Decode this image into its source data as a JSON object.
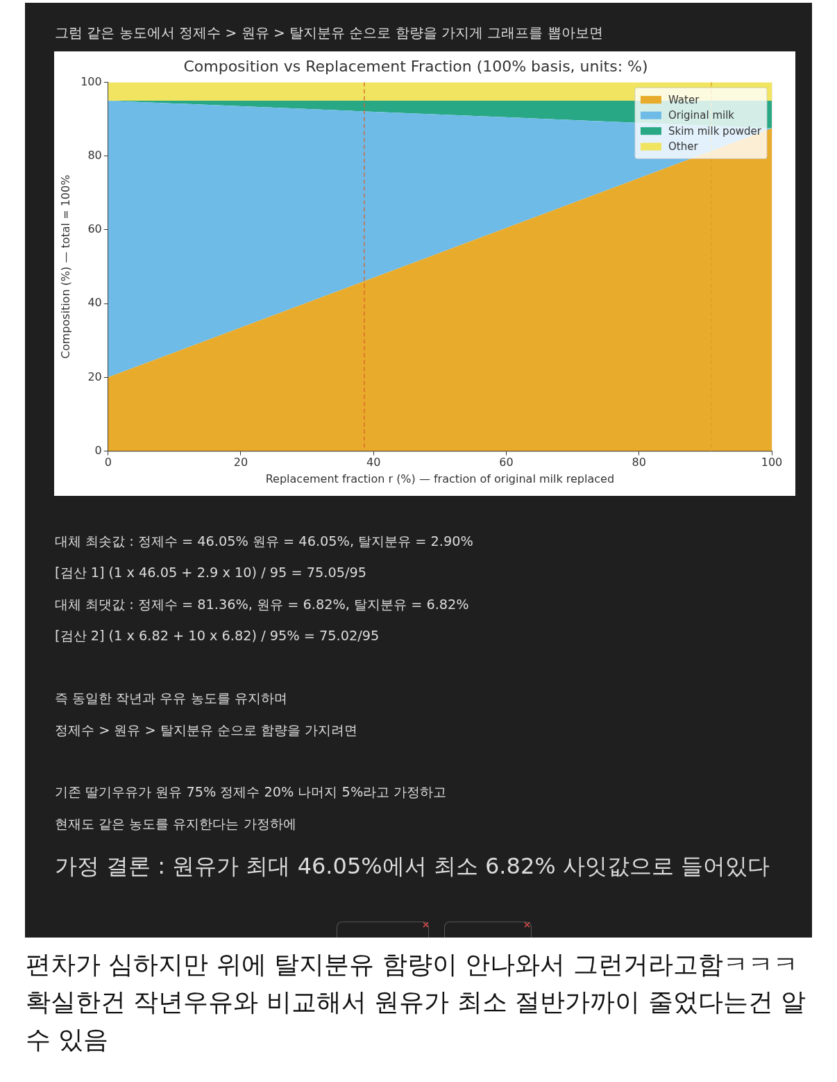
{
  "chart_data": {
    "type": "area",
    "title": "Composition vs Replacement Fraction (100% basis, units: %)",
    "xlabel": "Replacement fraction r (%) — fraction of original milk replaced",
    "ylabel": "Composition (%) — total = 100%",
    "x": [
      0,
      100
    ],
    "series": [
      {
        "name": "Water",
        "color": "#e8ab2b",
        "values": [
          20,
          87.5
        ]
      },
      {
        "name": "Original milk",
        "color": "#6ebbe8",
        "values": [
          75,
          0
        ]
      },
      {
        "name": "Skim milk powder",
        "color": "#29a886",
        "values": [
          0,
          7.5
        ]
      },
      {
        "name": "Other",
        "color": "#f0e460",
        "values": [
          5,
          5
        ]
      }
    ],
    "stacked": true,
    "xlim": [
      0,
      100
    ],
    "xticks": [
      0,
      20,
      40,
      60,
      80,
      100
    ],
    "ylim": [
      0,
      100
    ],
    "yticks": [
      0,
      20,
      40,
      60,
      80,
      100
    ],
    "grid": "x",
    "legend": "top right",
    "ref_lines": [
      {
        "axis": "x",
        "value": 38.6,
        "color": "#d9622b",
        "line_style": "dashed"
      },
      {
        "axis": "x",
        "value": 90.9,
        "color": "#dca022",
        "line_style": "dashed"
      }
    ],
    "annotations": [
      "그럼 같은 농도에서 정제수 > 원유 > 탈지분유 순으로 함량을 가지게 그래프를 뽑아보면",
      "대체 최솟값 : 정제수 = 46.05% 원유 = 46.05%, 탈지분유 = 2.90%",
      "[검산 1] (1 x 46.05 + 2.9 x 10) / 95 = 75.05/95",
      "대체 최댓값 : 정제수 = 81.36%, 원유 = 6.82%, 탈지분유 = 6.82%",
      "[검산 2] (1 x 6.82 + 10 x 6.82) / 95% = 75.02/95",
      "즉 동일한 작년과 우유 농도를 유지하며",
      "정제수 > 원유 > 탈지분유 순으로 함량을 가지려면",
      "기존 딸기우유가 원유 75% 정제수 20% 나머지 5%라고 가정하고",
      "현재도 같은 농도를 유지한다는 가정하에",
      "가정 결론 : 원유가 최대 46.05%에서 최소 6.82% 사잇값으로 들어있다",
      "편차가 심하지만 위에 탈지분유 함량이 안나와서 그런거라고함ㅋㅋㅋ",
      "확실한건 작년우유와 비교해서 원유가 최소 절반가까이 줄었다는건 알 수 있음"
    ]
  }
}
